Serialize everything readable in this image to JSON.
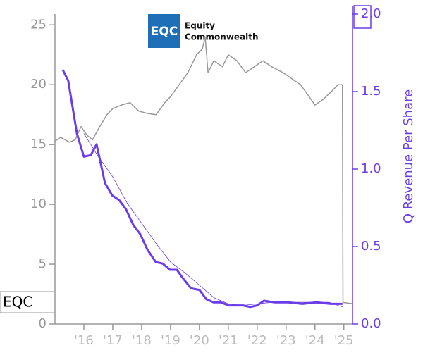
{
  "chart_data": {
    "type": "line",
    "logo": {
      "mark": "EQC",
      "name_line1": "Equity",
      "name_line2": "Commonwealth"
    },
    "ticker_label": "EQC",
    "y2_label": "Q Revenue Per Share",
    "xlim": [
      2015.0,
      2025.3
    ],
    "xticks": [
      {
        "value": 2016,
        "label": "'16"
      },
      {
        "value": 2017,
        "label": "'17"
      },
      {
        "value": 2018,
        "label": "'18"
      },
      {
        "value": 2019,
        "label": "'19"
      },
      {
        "value": 2020,
        "label": "'20"
      },
      {
        "value": 2021,
        "label": "'21"
      },
      {
        "value": 2022,
        "label": "'22"
      },
      {
        "value": 2023,
        "label": "'23"
      },
      {
        "value": 2024,
        "label": "'24"
      },
      {
        "value": 2025,
        "label": "'25"
      }
    ],
    "ylim": [
      0,
      25.9
    ],
    "yticks": [
      0,
      5,
      10,
      15,
      20,
      25
    ],
    "y2lim": [
      0,
      2.0
    ],
    "y2ticks": [
      {
        "value": 0,
        "label": "0.0"
      },
      0.5,
      {
        "value": 1,
        "label": "1.0"
      },
      1.5,
      {
        "value": 2,
        "label": "2.0"
      }
    ],
    "series": [
      {
        "color": "#999999",
        "width": 1.5,
        "axis": "y",
        "x": [
          2015.0,
          2015.2,
          2015.5,
          2015.7,
          2015.9,
          2016.1,
          2016.3,
          2016.5,
          2016.8,
          2017.0,
          2017.3,
          2017.6,
          2017.9,
          2018.2,
          2018.5,
          2018.8,
          2019.0,
          2019.3,
          2019.6,
          2019.9,
          2020.1,
          2020.2,
          2020.3,
          2020.5,
          2020.8,
          2021.0,
          2021.3,
          2021.6,
          2021.9,
          2022.2,
          2022.5,
          2022.9,
          2023.2,
          2023.5,
          2023.8,
          2024.0,
          2024.3,
          2024.6,
          2024.8,
          2024.95,
          2024.97,
          2025.3
        ],
        "values": [
          15.3,
          15.6,
          15.2,
          15.4,
          16.5,
          15.8,
          15.4,
          16.3,
          17.5,
          18.0,
          18.3,
          18.5,
          17.8,
          17.6,
          17.5,
          18.5,
          19.0,
          20.0,
          21.0,
          22.5,
          23.0,
          24.0,
          21.0,
          22.0,
          21.5,
          22.5,
          22.0,
          21.0,
          21.5,
          22.0,
          21.5,
          21.0,
          20.5,
          20.0,
          19.0,
          18.3,
          18.8,
          19.5,
          20.0,
          20.0,
          1.8,
          1.7
        ]
      },
      {
        "color": "#6a3de8",
        "width": 0.8,
        "axis": "y2",
        "x": [
          2016.0,
          2016.5,
          2017.0,
          2017.5,
          2018.0,
          2018.5,
          2019.0,
          2019.5,
          2020.0,
          2020.5,
          2021.0,
          2021.5,
          2022.0,
          2022.5,
          2023.0,
          2023.5,
          2024.0,
          2024.5,
          2024.95
        ],
        "values": [
          1.23,
          1.08,
          0.95,
          0.78,
          0.65,
          0.52,
          0.4,
          0.33,
          0.25,
          0.17,
          0.13,
          0.12,
          0.13,
          0.14,
          0.14,
          0.14,
          0.14,
          0.14,
          0.11
        ]
      },
      {
        "color": "#6a3de8",
        "width": 3,
        "axis": "y2",
        "x": [
          2015.27,
          2015.46,
          2015.76,
          2016.0,
          2016.24,
          2016.44,
          2016.73,
          2016.98,
          2017.22,
          2017.46,
          2017.71,
          2017.95,
          2018.2,
          2018.49,
          2018.73,
          2018.98,
          2019.22,
          2019.41,
          2019.71,
          2020.0,
          2020.24,
          2020.49,
          2020.73,
          2021.02,
          2021.51,
          2021.76,
          2022.0,
          2022.24,
          2022.59,
          2023.07,
          2023.56,
          2024.05,
          2024.54,
          2024.95
        ],
        "values": [
          1.64,
          1.57,
          1.23,
          1.08,
          1.09,
          1.16,
          0.91,
          0.83,
          0.8,
          0.74,
          0.64,
          0.58,
          0.48,
          0.4,
          0.39,
          0.35,
          0.35,
          0.3,
          0.23,
          0.22,
          0.16,
          0.14,
          0.14,
          0.12,
          0.12,
          0.11,
          0.12,
          0.15,
          0.14,
          0.14,
          0.13,
          0.14,
          0.13,
          0.13
        ]
      }
    ]
  }
}
